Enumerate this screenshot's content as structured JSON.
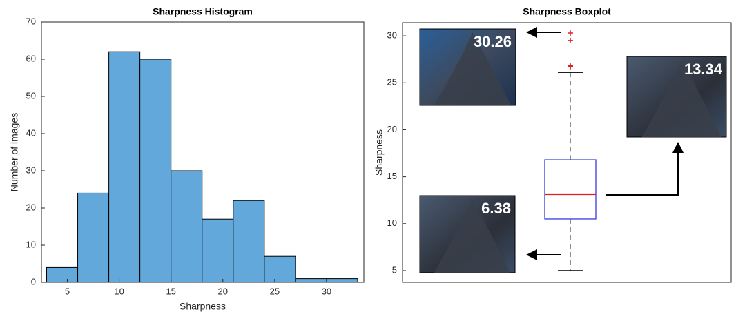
{
  "chart_data": [
    {
      "type": "histogram",
      "title": "Sharpness Histogram",
      "x_label": "Sharpness",
      "y_label": "Number of images",
      "bins": [
        3,
        6,
        9,
        12,
        15,
        18,
        21,
        24,
        27,
        30,
        33
      ],
      "counts": [
        4,
        24,
        62,
        60,
        30,
        17,
        22,
        7,
        1,
        1
      ],
      "color": "#62a8da",
      "xlim": [
        2.5,
        33.6
      ],
      "xticks": [
        5,
        10,
        15,
        20,
        25,
        30
      ],
      "ylim": [
        0,
        70
      ],
      "yticks": [
        0,
        10,
        20,
        30,
        40,
        50,
        60,
        70
      ]
    },
    {
      "type": "box",
      "title": "Sharpness Boxplot",
      "y_label": "Sharpness",
      "whisker_low": 5,
      "q1": 10.5,
      "median": 13.1,
      "q3": 16.8,
      "whisker_high": 26.1,
      "outliers": [
        30.3,
        29.5,
        26.8,
        26.7
      ],
      "box_color": "#3a3ae0",
      "median_color": "#e02020",
      "outlier_color": "#e02020",
      "ylim": [
        3.75,
        31.4
      ],
      "yticks": [
        5,
        10,
        15,
        20,
        25,
        30
      ],
      "annotations": [
        "30.26",
        "13.34",
        "6.38"
      ]
    }
  ]
}
